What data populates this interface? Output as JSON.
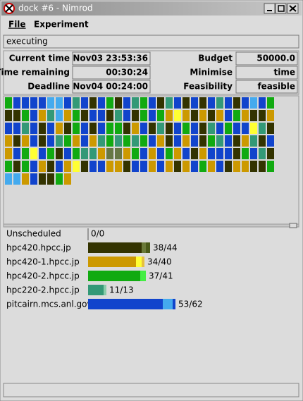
{
  "window": {
    "title": "dock #6 - Nimrod"
  },
  "menu": [
    "File",
    "Experiment"
  ],
  "status": "executing",
  "info": [
    [
      {
        "label": "Current time",
        "value": "Nov03 23:53:36"
      },
      {
        "label": "Budget",
        "value": "50000.0"
      }
    ],
    [
      {
        "label": "Time remaining",
        "value": "00:30:24"
      },
      {
        "label": "Minimise",
        "value": "time"
      }
    ],
    [
      {
        "label": "Deadline",
        "value": "Nov04 00:24:00"
      },
      {
        "label": "Feasibility",
        "value": "feasible"
      }
    ]
  ],
  "job_grid": [
    "#11aa11",
    "#1144cc",
    "#1144cc",
    "#1144cc",
    "#1144cc",
    "#44aaee",
    "#44aaee",
    "#1144cc",
    "#339977",
    "#1144cc",
    "#333300",
    "#1144cc",
    "#11aa11",
    "#333300",
    "#1144cc",
    "#339977",
    "#11aa11",
    "#1144cc",
    "#333300",
    "#339977",
    "#1144cc",
    "#333300",
    "#1144cc",
    "#333300",
    "#1144cc",
    "#339977",
    "#1144cc",
    "#333300",
    "#1144cc",
    "#44aaee",
    "#1144cc",
    "#11aa11",
    "#333300",
    "#333300",
    "#11aa11",
    "#1144cc",
    "#cc9900",
    "#339977",
    "#44aaee",
    "#cc9900",
    "#11aa11",
    "#333300",
    "#1144cc",
    "#1144cc",
    "#333300",
    "#339977",
    "#1144cc",
    "#333300",
    "#11aa11",
    "#1144cc",
    "#11aa11",
    "#cc9900",
    "#ffff33",
    "#cc9900",
    "#333300",
    "#cc9900",
    "#333300",
    "#cc9900",
    "#1144cc",
    "#11aa11",
    "#cc9900",
    "#333300",
    "#333300",
    "#cc9900",
    "#1144cc",
    "#1144cc",
    "#339977",
    "#1144cc",
    "#333300",
    "#1144cc",
    "#cc9900",
    "#333300",
    "#11aa11",
    "#1144cc",
    "#333300",
    "#1144cc",
    "#11aa11",
    "#11aa11",
    "#333300",
    "#cc9900",
    "#1144cc",
    "#333300",
    "#339977",
    "#333300",
    "#1144cc",
    "#11aa11",
    "#1144cc",
    "#333300",
    "#339977",
    "#1144cc",
    "#11aa11",
    "#1144cc",
    "#1144cc",
    "#ffff33",
    "#339977",
    "#333300",
    "#cc9900",
    "#333300",
    "#cc9900",
    "#1144cc",
    "#333300",
    "#1144cc",
    "#339977",
    "#11aa11",
    "#cc9900",
    "#1144cc",
    "#cc9900",
    "#339977",
    "#11aa11",
    "#339977",
    "#11aa11",
    "#339977",
    "#11aa11",
    "#1144cc",
    "#cc9900",
    "#333300",
    "#1144cc",
    "#cc9900",
    "#1144cc",
    "#333300",
    "#11aa11",
    "#339977",
    "#1144cc",
    "#333300",
    "#cc9900",
    "#339977",
    "#333300",
    "#1144cc",
    "#cc9900",
    "#1144cc",
    "#11aa11",
    "#ffff33",
    "#1144cc",
    "#11aa11",
    "#333300",
    "#1144cc",
    "#11aa11",
    "#339977",
    "#339977",
    "#cc9900",
    "#667744",
    "#667744",
    "#cc9900",
    "#11aa11",
    "#1144cc",
    "#cc9900",
    "#1144cc",
    "#11aa11",
    "#cc9900",
    "#1144cc",
    "#333300",
    "#cc9900",
    "#1144cc",
    "#1144cc",
    "#1144cc",
    "#333300",
    "#11aa11",
    "#1144cc",
    "#339977",
    "#333300",
    "#11aa11",
    "#333300",
    "#11aa11",
    "#1144cc",
    "#cc9900",
    "#333300",
    "#1144cc",
    "#cc9900",
    "#ffff33",
    "#333300",
    "#1144cc",
    "#1144cc",
    "#cc9900",
    "#cc9900",
    "#333300",
    "#1144cc",
    "#1144cc",
    "#cc9900",
    "#1144cc",
    "#cc9900",
    "#333300",
    "#cc9900",
    "#1144cc",
    "#11aa11",
    "#cc9900",
    "#1144cc",
    "#333300",
    "#cc9900",
    "#cc9900",
    "#333300",
    "#333300",
    "#11aa11",
    "#44aaee",
    "#44aaee",
    "#cc9900",
    "#1144cc",
    "#333300",
    "#333300",
    "#11aa11",
    "#cc9900"
  ],
  "hosts": [
    {
      "name": "Unscheduled",
      "label": "0/0",
      "completed": 0,
      "total": 0,
      "color": "#333300",
      "others": []
    },
    {
      "name": "hpc420.hpcc.jp",
      "label": "38/44",
      "completed": 38,
      "total": 44,
      "color": "#333300",
      "others": [
        {
          "value": 3,
          "color": "#6b7a3a"
        },
        {
          "value": 3,
          "color": "#4a5a1a"
        }
      ]
    },
    {
      "name": "hpc420-1.hpcc.jp",
      "label": "34/40",
      "completed": 34,
      "total": 40,
      "color": "#cc9900",
      "others": [
        {
          "value": 4,
          "color": "#ffff33"
        },
        {
          "value": 2,
          "color": "#e6c040"
        }
      ]
    },
    {
      "name": "hpc420-2.hpcc.jp",
      "label": "37/41",
      "completed": 37,
      "total": 41,
      "color": "#11aa11",
      "others": [
        {
          "value": 4,
          "color": "#44ee44"
        }
      ]
    },
    {
      "name": "hpc220-2.hpcc.jp",
      "label": "11/13",
      "completed": 11,
      "total": 13,
      "color": "#339977",
      "others": [
        {
          "value": 2,
          "color": "#88ccaa"
        }
      ]
    },
    {
      "name": "pitcairn.mcs.anl.gov",
      "label": "53/62",
      "completed": 53,
      "total": 62,
      "color": "#1144cc",
      "others": [
        {
          "value": 7,
          "color": "#44aaee"
        },
        {
          "value": 2,
          "color": "#1144cc"
        }
      ]
    }
  ]
}
